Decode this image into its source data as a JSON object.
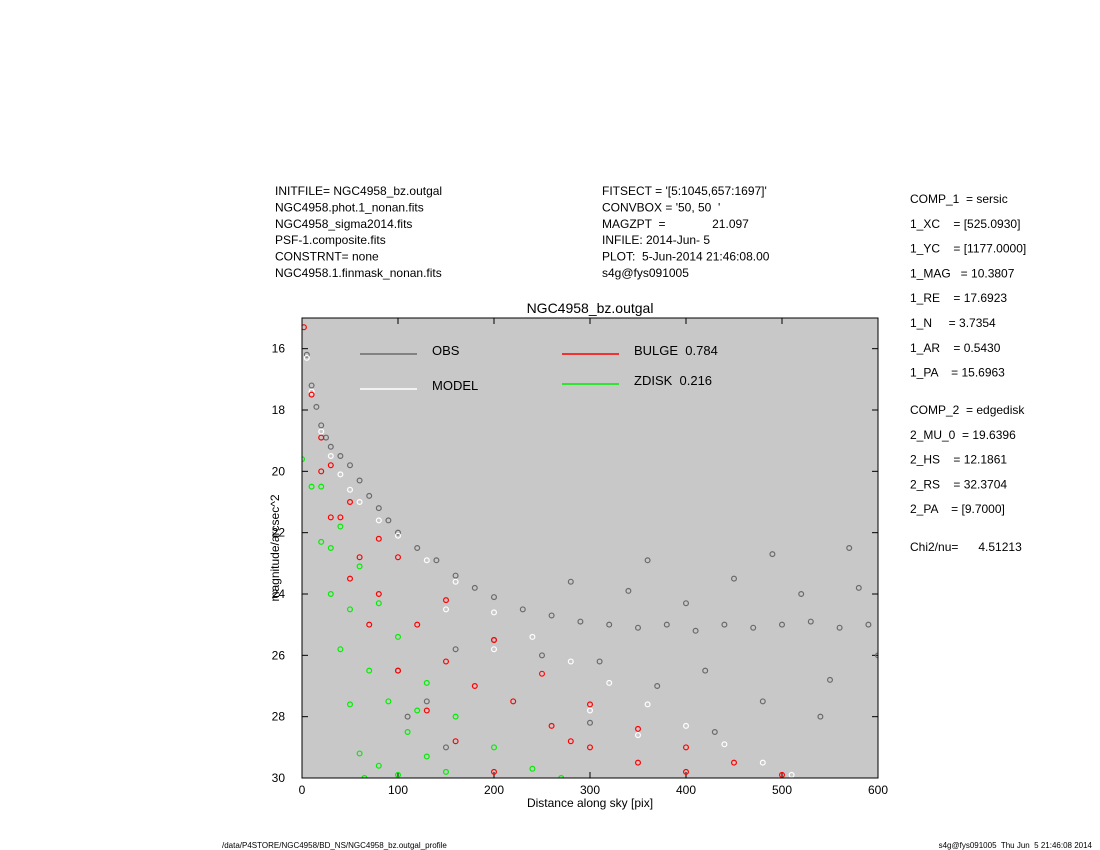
{
  "header": {
    "left": [
      "INITFILE= NGC4958_bz.outgal",
      "NGC4958.phot.1_nonan.fits",
      "NGC4958_sigma2014.fits",
      "PSF-1.composite.fits",
      "CONSTRNT= none",
      "NGC4958.1.finmask_nonan.fits"
    ],
    "center": [
      "FITSECT = '[5:1045,657:1697]'",
      "CONVBOX = '50, 50  '",
      "MAGZPT  =              21.097",
      "INFILE: 2014-Jun- 5",
      "PLOT:  5-Jun-2014 21:46:08.00",
      "s4g@fys091005"
    ],
    "right_comp1": [
      "COMP_1  = sersic",
      "1_XC    = [525.0930]",
      "1_YC    = [1177.0000]",
      "1_MAG   = 10.3807",
      "1_RE    = 17.6923",
      "1_N     = 3.7354",
      "1_AR    = 0.5430",
      "1_PA    = 15.6963"
    ],
    "right_comp2": [
      "COMP_2  = edgedisk",
      "2_MU_0  = 19.6396",
      "2_HS    = 12.1861",
      "2_RS    = 32.3704",
      "2_PA    = [9.7000]"
    ],
    "chi2": "Chi2/nu=      4.51213"
  },
  "chart_data": {
    "type": "scatter",
    "title": "NGC4958_bz.outgal",
    "x_label": "Distance along sky [pix]",
    "y_label": "magnitude/arcsec^2",
    "xlim": [
      0,
      600
    ],
    "ylim": [
      30,
      15
    ],
    "xticks": [
      0,
      100,
      200,
      300,
      400,
      500,
      600
    ],
    "yticks": [
      16,
      18,
      20,
      22,
      24,
      26,
      28,
      30
    ],
    "background": "#c8c8c8",
    "series": [
      {
        "name": "OBS",
        "color": "#6a6a6a",
        "x": [
          2,
          5,
          10,
          15,
          20,
          25,
          30,
          40,
          50,
          60,
          70,
          80,
          90,
          100,
          120,
          140,
          160,
          180,
          200,
          230,
          260,
          290,
          320,
          350,
          380,
          410,
          440,
          470,
          500,
          530,
          560,
          590,
          280,
          310,
          340,
          370,
          400,
          420,
          450,
          480,
          520,
          550,
          580,
          600,
          300,
          360,
          430,
          490,
          540,
          570,
          250,
          200,
          160,
          130,
          110,
          150,
          100
        ],
        "values": [
          15.3,
          16.2,
          17.2,
          17.9,
          18.5,
          18.9,
          19.2,
          19.5,
          19.8,
          20.3,
          20.8,
          21.2,
          21.6,
          22.0,
          22.5,
          22.9,
          23.4,
          23.8,
          24.1,
          24.5,
          24.7,
          24.9,
          25.0,
          25.1,
          25.0,
          25.2,
          25.0,
          25.1,
          25.0,
          24.9,
          25.1,
          25.0,
          23.6,
          26.2,
          23.9,
          27.0,
          24.3,
          26.5,
          23.5,
          27.5,
          24.0,
          26.8,
          23.8,
          26.0,
          28.2,
          22.9,
          28.5,
          22.7,
          28.0,
          22.5,
          26.0,
          25.5,
          25.8,
          27.5,
          28.0,
          29.0,
          26.5
        ]
      },
      {
        "name": "MODEL",
        "color": "#ffffff",
        "x": [
          2,
          5,
          10,
          20,
          30,
          40,
          50,
          60,
          80,
          100,
          130,
          160,
          200,
          240,
          280,
          320,
          360,
          400,
          440,
          480,
          510,
          150,
          200,
          250,
          300,
          350
        ],
        "values": [
          15.3,
          16.3,
          17.4,
          18.7,
          19.5,
          20.1,
          20.6,
          21.0,
          21.6,
          22.1,
          22.9,
          23.6,
          24.6,
          25.4,
          26.2,
          26.9,
          27.6,
          28.3,
          28.9,
          29.5,
          29.9,
          24.5,
          25.8,
          26.6,
          27.8,
          28.6
        ]
      },
      {
        "name": "BULGE  0.784",
        "color": "#ff0000",
        "x": [
          2,
          10,
          20,
          30,
          50,
          80,
          100,
          150,
          200,
          250,
          300,
          350,
          400,
          450,
          500,
          20,
          30,
          50,
          70,
          100,
          130,
          160,
          200,
          40,
          60,
          80,
          120,
          150,
          180,
          220,
          260,
          300,
          350,
          400,
          280
        ],
        "values": [
          15.3,
          17.5,
          18.9,
          19.8,
          21.0,
          22.2,
          22.8,
          24.2,
          25.5,
          26.6,
          27.6,
          28.4,
          29.0,
          29.5,
          29.9,
          20.0,
          21.5,
          23.5,
          25.0,
          26.5,
          27.8,
          28.8,
          29.8,
          21.5,
          22.8,
          24.0,
          25.0,
          26.2,
          27.0,
          27.5,
          28.3,
          29.0,
          29.5,
          29.8,
          28.8
        ]
      },
      {
        "name": "ZDISK  0.216",
        "color": "#00ee00",
        "x": [
          0,
          20,
          40,
          60,
          80,
          100,
          130,
          160,
          200,
          240,
          270,
          10,
          20,
          30,
          40,
          50,
          60,
          65,
          30,
          50,
          70,
          90,
          110,
          130,
          150,
          80,
          100,
          120
        ],
        "values": [
          19.6,
          20.5,
          21.8,
          23.1,
          24.3,
          25.4,
          26.9,
          28.0,
          29.0,
          29.7,
          30.0,
          20.5,
          22.3,
          24.0,
          25.8,
          27.6,
          29.2,
          30.0,
          22.5,
          24.5,
          26.5,
          27.5,
          28.5,
          29.3,
          29.8,
          29.6,
          29.9,
          27.8
        ]
      }
    ]
  },
  "footer": {
    "left": "/data/P4STORE/NGC4958/BD_NS/NGC4958_bz.outgal_profile",
    "right": "s4g@fys091005  Thu Jun  5 21:46:08 2014"
  }
}
